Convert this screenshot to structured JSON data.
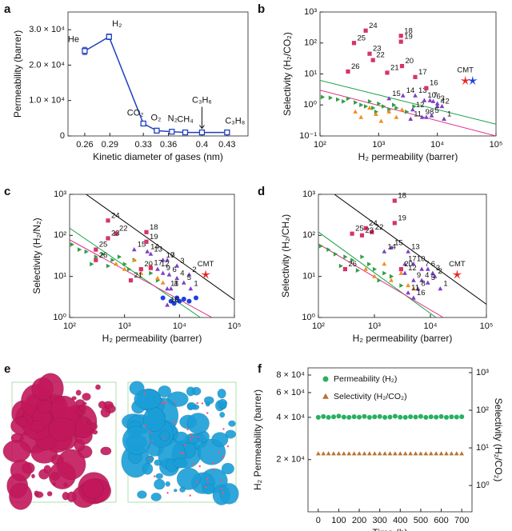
{
  "chart_data": [
    {
      "type": "line",
      "panel": "a",
      "x_label": "Kinetic diameter of gases (nm)",
      "y_label": "Permeability (barrer)",
      "xlim": [
        0.24,
        0.455
      ],
      "ylim": [
        0,
        35000
      ],
      "xticks": [
        0.26,
        0.29,
        0.33,
        0.36,
        0.4,
        0.43
      ],
      "yticks": [
        0,
        {
          "value": 10000,
          "label": "1.0 × 10⁴"
        },
        {
          "value": 20000,
          "label": "2.0 × 10⁴"
        },
        {
          "value": 30000,
          "label": "3.0 × 10⁴"
        }
      ],
      "series": [
        {
          "color": "#1f3fbf",
          "x": [
            0.26,
            0.289,
            0.33,
            0.346,
            0.364,
            0.38,
            0.4,
            0.43
          ],
          "values": [
            24000,
            28000,
            3500,
            1500,
            1200,
            1000,
            1000,
            1000
          ],
          "errors": [
            1000,
            800,
            null,
            null,
            null,
            null,
            null,
            null
          ],
          "labels": [
            "He",
            "H₂",
            "CO₂",
            "O₂",
            "N₂",
            "CH₄",
            "C₃H₆",
            "C₃H₈"
          ]
        }
      ]
    },
    {
      "type": "scatter",
      "panel": "b",
      "x_label": "H₂ permeability (barrer)",
      "y_label": "Selectivity (H₂/CO₂)",
      "xlog": true,
      "ylog": true,
      "xlim": [
        100,
        100000
      ],
      "ylim": [
        0.1,
        1000
      ],
      "xticks": [
        {
          "value": 100,
          "label": "10²"
        },
        {
          "value": 1000,
          "label": "10³"
        },
        {
          "value": 10000,
          "label": "10⁴"
        },
        {
          "value": 100000,
          "label": "10⁵"
        }
      ],
      "yticks": [
        {
          "value": 0.1,
          "label": "10⁻¹"
        },
        {
          "value": 1,
          "label": "10⁰"
        },
        {
          "value": 10,
          "label": "10¹"
        },
        {
          "value": 100,
          "label": "10²"
        },
        {
          "value": 1000,
          "label": "10³"
        }
      ],
      "series": [
        {
          "style": "line",
          "color": "#1aa34a",
          "x": [
            100,
            100000
          ],
          "values": [
            6.2,
            0.24
          ]
        },
        {
          "style": "line",
          "color": "#e0338a",
          "x": [
            100,
            100000
          ],
          "values": [
            3,
            0.1
          ]
        },
        {
          "marker": "tri-right",
          "color": "#2ea043",
          "x": [
            110,
            150,
            200,
            250,
            300,
            400,
            500,
            600,
            800,
            1000,
            1200,
            1500,
            2000,
            3000,
            4000,
            700,
            900,
            1800
          ],
          "values": [
            1.8,
            1.7,
            1.5,
            1.3,
            1.6,
            1.2,
            1.0,
            0.9,
            0.8,
            1.1,
            0.9,
            0.7,
            0.8,
            0.6,
            0.9,
            1.3,
            0.6,
            1.0
          ]
        },
        {
          "marker": "tri-up",
          "color": "#f28e1c",
          "x": [
            400,
            500,
            700,
            900,
            1100,
            1500,
            2000,
            2500
          ],
          "values": [
            0.6,
            0.4,
            0.8,
            0.5,
            0.3,
            0.6,
            0.4,
            0.7
          ]
        },
        {
          "marker": "tri-up",
          "color": "#7a3fc7",
          "x": [
            1500,
            2600,
            4200,
            6000,
            7500,
            8500,
            10000,
            12000,
            10000,
            3800,
            3500,
            5500,
            6500,
            8000,
            13000
          ],
          "values": [
            1.6,
            2.0,
            2.0,
            1.4,
            1.4,
            1.3,
            1.1,
            0.9,
            0.9,
            0.7,
            0.35,
            0.4,
            0.4,
            0.45,
            0.35
          ],
          "labels": [
            "15",
            "14",
            "13",
            "10",
            "7",
            "6",
            "3",
            "2",
            "4",
            "12",
            "11",
            "9",
            "8",
            "5",
            "1"
          ]
        },
        {
          "marker": "square",
          "color": "#d6336c",
          "x": [
            600,
            380,
            700,
            800,
            300,
            1400,
            2400,
            2400,
            2500,
            4200,
            6500
          ],
          "values": [
            250,
            100,
            45,
            28,
            12,
            11,
            170,
            110,
            18,
            8,
            3.5
          ],
          "labels": [
            "24",
            "25",
            "23",
            "22",
            "26",
            "21",
            "18",
            "19",
            "20",
            "17",
            "16"
          ]
        },
        {
          "marker": "star",
          "color": "#e8251f",
          "x": [
            30000
          ],
          "values": [
            6
          ],
          "labels": [
            "CMT"
          ]
        },
        {
          "marker": "star",
          "color": "#1f3fe0",
          "x": [
            40000
          ],
          "values": [
            6
          ]
        }
      ]
    },
    {
      "type": "scatter",
      "panel": "c",
      "x_label": "H₂ permeability (barrer)",
      "y_label": "Selectivity (H₂/N₂)",
      "xlog": true,
      "ylog": true,
      "xlim": [
        100,
        100000
      ],
      "ylim": [
        1,
        1000
      ],
      "xticks": [
        {
          "value": 100,
          "label": "10²"
        },
        {
          "value": 1000,
          "label": "10³"
        },
        {
          "value": 10000,
          "label": "10⁴"
        },
        {
          "value": 100000,
          "label": "10⁵"
        }
      ],
      "yticks": [
        {
          "value": 1,
          "label": "10⁰"
        },
        {
          "value": 10,
          "label": "10¹"
        },
        {
          "value": 100,
          "label": "10²"
        },
        {
          "value": 1000,
          "label": "10³"
        }
      ],
      "series": [
        {
          "style": "line",
          "color": "#000000",
          "x": [
            200,
            100000
          ],
          "values": [
            1000,
            2.7
          ]
        },
        {
          "style": "line",
          "color": "#1aa34a",
          "x": [
            100,
            24000
          ],
          "values": [
            150,
            1
          ]
        },
        {
          "style": "line",
          "color": "#e0338a",
          "x": [
            100,
            39000
          ],
          "values": [
            78,
            1
          ]
        },
        {
          "marker": "tri-right",
          "color": "#2ea043",
          "x": [
            110,
            150,
            200,
            300,
            400,
            600,
            800,
            1000,
            1500,
            2000,
            3000,
            4000,
            250,
            500,
            1200
          ],
          "values": [
            60,
            45,
            40,
            30,
            35,
            25,
            30,
            20,
            25,
            15,
            12,
            8,
            20,
            18,
            15
          ]
        },
        {
          "marker": "tri-up",
          "color": "#f28e1c",
          "x": [
            700,
            1000,
            1500,
            2000,
            3000,
            4000,
            5000
          ],
          "values": [
            20,
            15,
            25,
            12,
            18,
            9,
            7
          ]
        },
        {
          "marker": "circle",
          "color": "#1f3fe0",
          "x": [
            5000,
            7000,
            9000,
            12000,
            15000,
            20000,
            8000,
            10000
          ],
          "values": [
            3,
            2.5,
            3,
            2.8,
            2.5,
            3,
            2.2,
            2.5
          ]
        },
        {
          "marker": "tri-up",
          "color": "#7a3fc7",
          "x": [
            1500,
            2600,
            3000,
            5000,
            6000,
            9000,
            15000,
            4000,
            5000,
            6500,
            9000,
            12000,
            16000,
            6000,
            7000,
            6000
          ],
          "values": [
            45,
            40,
            35,
            25,
            25,
            18,
            11,
            15,
            12,
            11,
            9,
            7,
            5,
            5,
            5,
            2
          ],
          "labels": [
            "15",
            "14",
            "13",
            "10",
            "7",
            "3",
            "2",
            "12",
            "9",
            "6",
            "4",
            "5",
            "1",
            "11",
            "8",
            "16"
          ]
        },
        {
          "marker": "square",
          "color": "#d6336c",
          "x": [
            500,
            2500,
            700,
            500,
            300,
            300,
            1300,
            2500,
            2000,
            3000
          ],
          "values": [
            230,
            120,
            110,
            85,
            45,
            25,
            8,
            70,
            15,
            16
          ],
          "labels": [
            "24",
            "18",
            "22",
            "23",
            "25",
            "26",
            "21",
            "19",
            "20",
            "17"
          ]
        },
        {
          "marker": "star",
          "color": "#e8251f",
          "x": [
            30000
          ],
          "values": [
            11
          ],
          "labels": [
            "CMT"
          ]
        }
      ]
    },
    {
      "type": "scatter",
      "panel": "d",
      "x_label": "H₂ permeability (barrer)",
      "y_label": "Selectivity (H₂/CH₄)",
      "xlog": true,
      "ylog": true,
      "xlim": [
        100,
        100000
      ],
      "ylim": [
        1,
        1000
      ],
      "xticks": [
        {
          "value": 100,
          "label": "10²"
        },
        {
          "value": 1000,
          "label": "10³"
        },
        {
          "value": 10000,
          "label": "10⁴"
        },
        {
          "value": 100000,
          "label": "10⁵"
        }
      ],
      "yticks": [
        {
          "value": 1,
          "label": "10⁰"
        },
        {
          "value": 10,
          "label": "10¹"
        },
        {
          "value": 100,
          "label": "10²"
        },
        {
          "value": 1000,
          "label": "10³"
        }
      ],
      "series": [
        {
          "style": "line",
          "color": "#000000",
          "x": [
            193,
            100000
          ],
          "values": [
            1000,
            2.1
          ]
        },
        {
          "style": "line",
          "color": "#1aa34a",
          "x": [
            100,
            12600
          ],
          "values": [
            121,
            1
          ]
        },
        {
          "style": "line",
          "color": "#e0338a",
          "x": [
            100,
            17000
          ],
          "values": [
            62,
            1
          ]
        },
        {
          "marker": "tri-right",
          "color": "#2ea043",
          "x": [
            110,
            150,
            200,
            300,
            400,
            600,
            800,
            1000,
            1500,
            2000,
            3000,
            250,
            500,
            1200
          ],
          "values": [
            55,
            45,
            35,
            30,
            25,
            30,
            20,
            15,
            12,
            10,
            6,
            18,
            14,
            8
          ]
        },
        {
          "marker": "tri-up",
          "color": "#f28e1c",
          "x": [
            700,
            1000,
            1500,
            2000,
            3000,
            4000,
            5000
          ],
          "values": [
            15,
            10,
            20,
            8,
            12,
            6,
            5
          ]
        },
        {
          "marker": "tri-up",
          "color": "#7a3fc7",
          "x": [
            2000,
            1500,
            4000,
            3500,
            3500,
            5000,
            7000,
            9000,
            11000,
            12000,
            5000,
            7000,
            9000,
            6000,
            4000,
            5000,
            15000
          ],
          "values": [
            50,
            40,
            40,
            20,
            12,
            20,
            15,
            15,
            12,
            10,
            8,
            8,
            7,
            5,
            4,
            3,
            5
          ],
          "labels": [
            "15",
            "14",
            "13",
            "17",
            "12",
            "10",
            "7",
            "6",
            "3",
            "2",
            "9",
            "4",
            "5",
            "8",
            "11",
            "16",
            "1"
          ]
        },
        {
          "marker": "square",
          "color": "#d6336c",
          "x": [
            2300,
            2300,
            700,
            900,
            400,
            600,
            300,
            3000
          ],
          "values": [
            700,
            200,
            150,
            120,
            110,
            100,
            15,
            15
          ],
          "labels": [
            "18",
            "19",
            "24",
            "22",
            "25",
            "23",
            "26",
            "20"
          ]
        },
        {
          "marker": "star",
          "color": "#e8251f",
          "x": [
            30000
          ],
          "values": [
            11
          ],
          "labels": [
            "CMT"
          ]
        }
      ]
    },
    {
      "type": "image",
      "panel": "e"
    },
    {
      "type": "scatter",
      "panel": "f",
      "x_label": "Time (h)",
      "y_label": "H₂ Permeability (barrer)",
      "y2_label": "Selectivity (H₂/CO₂)",
      "ylog": true,
      "y2log": true,
      "xlim": [
        -50,
        750
      ],
      "ylim": [
        8500,
        90000
      ],
      "y2lim": [
        0.2,
        1340
      ],
      "xticks": [
        0,
        100,
        200,
        300,
        400,
        500,
        600,
        700
      ],
      "yticks": [
        {
          "value": 20000,
          "label": "2 × 10⁴"
        },
        {
          "value": 40000,
          "label": "4 × 10⁴"
        },
        {
          "value": 60000,
          "label": "6 × 10⁴"
        },
        {
          "value": 80000,
          "label": "8 × 10⁴"
        }
      ],
      "y2ticks": [
        {
          "value": 1,
          "label": "10⁰"
        },
        {
          "value": 10,
          "label": "10¹"
        },
        {
          "value": 100,
          "label": "10²"
        },
        {
          "value": 1000,
          "label": "10³"
        }
      ],
      "series": [
        {
          "name": "Permeability (H₂)",
          "marker": "circle",
          "color": "#27b060",
          "x": [
            0,
            25,
            50,
            75,
            100,
            125,
            150,
            175,
            200,
            225,
            250,
            275,
            300,
            325,
            350,
            375,
            400,
            425,
            450,
            475,
            500,
            525,
            550,
            575,
            600,
            625,
            650,
            675,
            700
          ],
          "values": [
            40000,
            40500,
            40000,
            40300,
            40800,
            40200,
            40000,
            40400,
            40100,
            40600,
            40000,
            40300,
            40500,
            40000,
            40200,
            40700,
            40100,
            40000,
            40400,
            40200,
            40600,
            40000,
            40300,
            40100,
            40500,
            40000,
            40300,
            40200,
            40400
          ]
        },
        {
          "name": "Selectivity (H₂/CO₂)",
          "axis": "y2",
          "marker": "tri-up",
          "color": "#b87333",
          "x": [
            0,
            25,
            50,
            75,
            100,
            125,
            150,
            175,
            200,
            225,
            250,
            275,
            300,
            325,
            350,
            375,
            400,
            425,
            450,
            475,
            500,
            525,
            550,
            575,
            600,
            625,
            650,
            675,
            700
          ],
          "values": [
            7,
            7,
            7,
            7,
            7,
            7,
            7,
            7,
            7,
            7,
            7,
            7,
            7,
            7,
            7,
            7,
            7,
            7,
            7,
            7,
            7,
            7,
            7,
            7,
            7,
            7,
            7,
            7,
            7
          ]
        }
      ]
    }
  ]
}
